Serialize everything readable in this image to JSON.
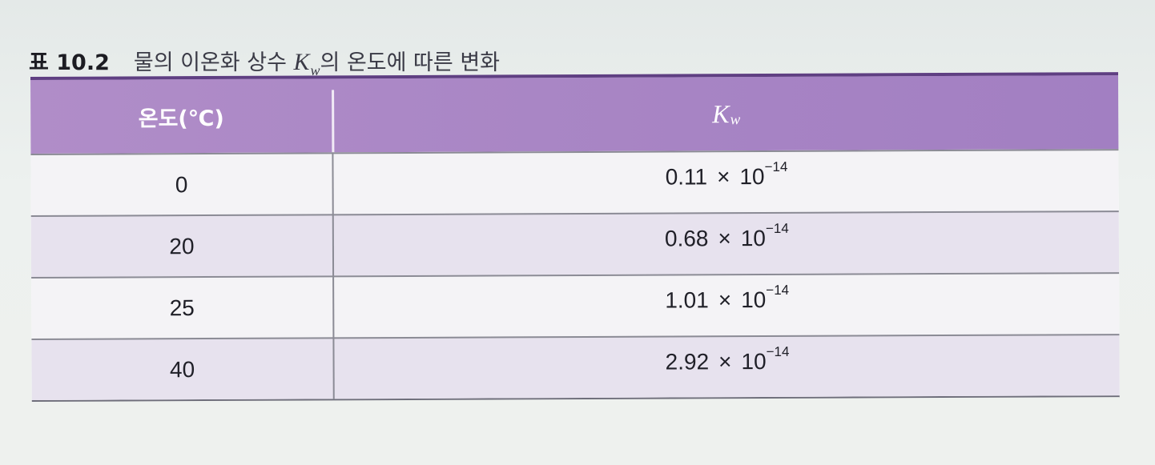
{
  "caption": {
    "label": "표 10.2",
    "text_before": "물의 이온화 상수 ",
    "symbol": "K",
    "subscript": "w",
    "text_after": "의 온도에 따른 변화"
  },
  "table": {
    "headers": {
      "temperature": "온도(℃)",
      "kw_symbol": "K",
      "kw_subscript": "w"
    },
    "rows": [
      {
        "temperature": "0",
        "mantissa": "0.11",
        "times": "×",
        "base": "10",
        "exponent": "−14"
      },
      {
        "temperature": "20",
        "mantissa": "0.68",
        "times": "×",
        "base": "10",
        "exponent": "−14"
      },
      {
        "temperature": "25",
        "mantissa": "1.01",
        "times": "×",
        "base": "10",
        "exponent": "−14"
      },
      {
        "temperature": "40",
        "mantissa": "2.92",
        "times": "×",
        "base": "10",
        "exponent": "−14"
      }
    ]
  },
  "colors": {
    "header_bg": "#a784c4",
    "header_top_rule": "#5f3f82",
    "shaded_row": "#e7e2ee",
    "rule": "#8b8b95"
  }
}
